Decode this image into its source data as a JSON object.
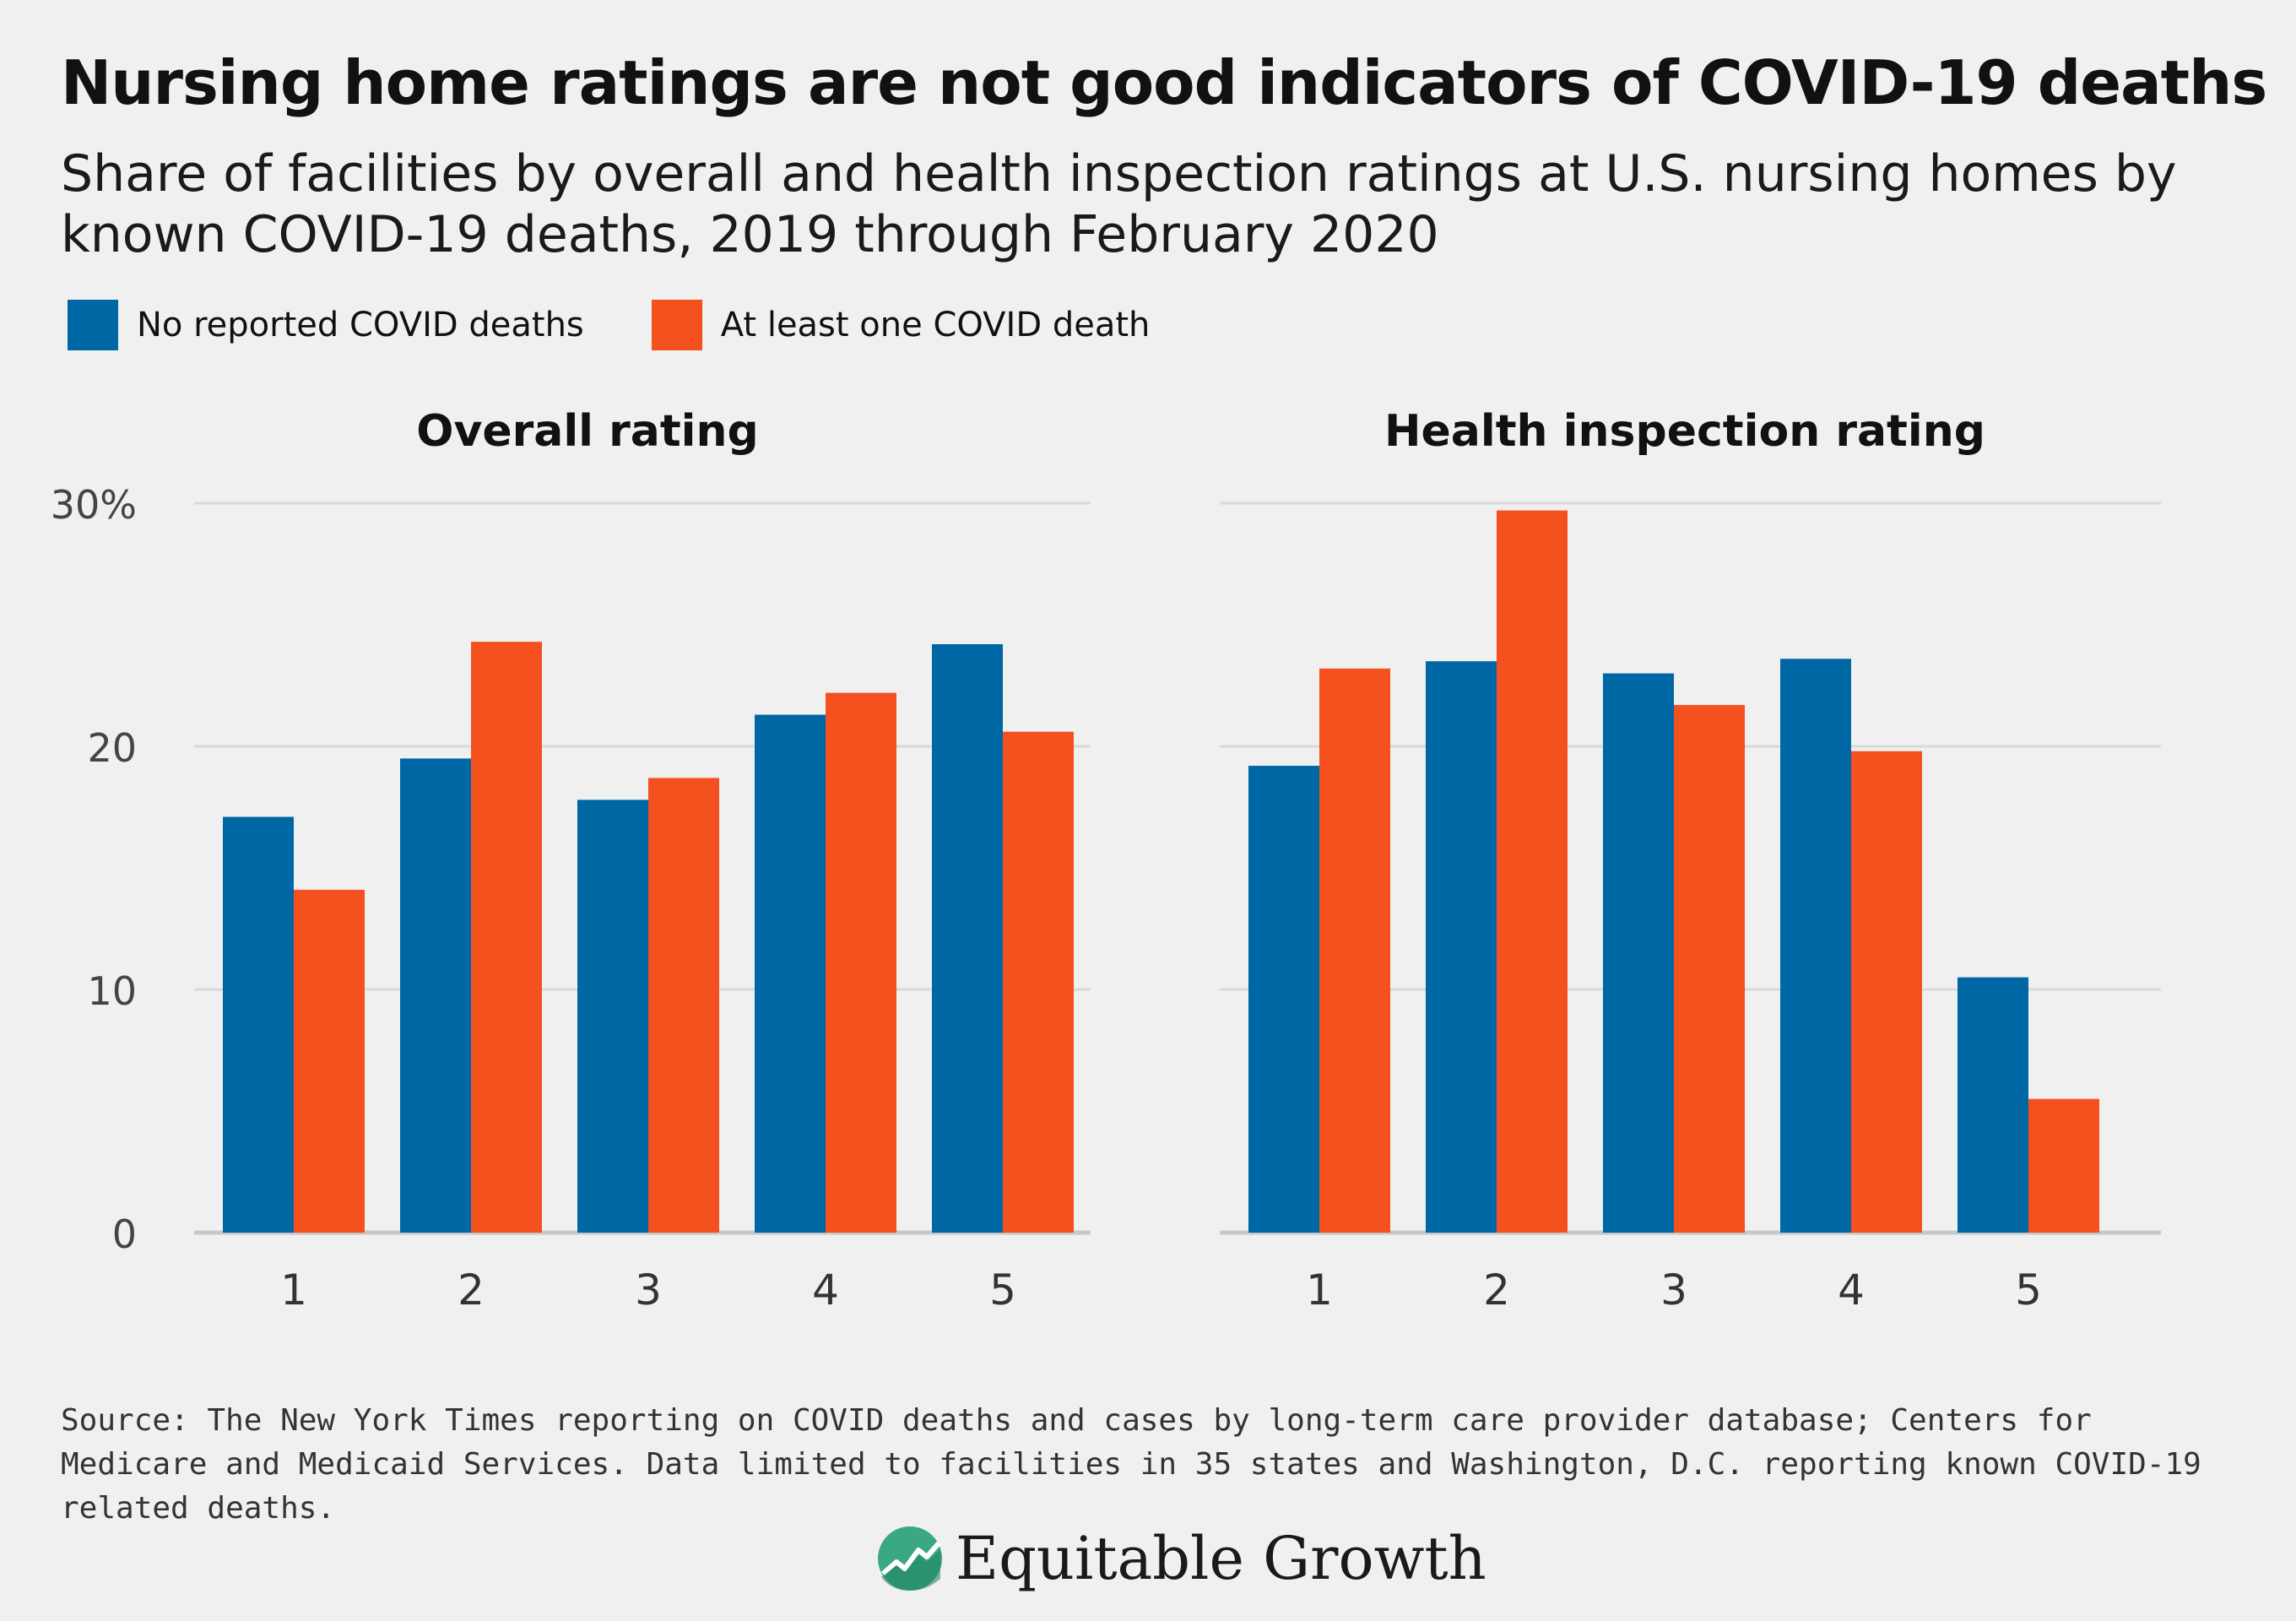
{
  "title": "Nursing home ratings are not good indicators of COVID-19 deaths",
  "subtitle": "Share of facilities by overall and health inspection ratings at U.S. nursing homes by known COVID-19 deaths, 2019 through February 2020",
  "legend": [
    {
      "label": "No reported COVID deaths",
      "color": "#0067a5"
    },
    {
      "label": "At least one COVID death",
      "color": "#f4511e"
    }
  ],
  "source": "Source: The New York Times reporting on COVID deaths and cases by long-term care provider database; Centers for Medicare and Medicaid Services. Data limited to facilities in 35 states and Washington, D.C. reporting known COVID-19 related deaths.",
  "logo": {
    "text": "Equitable Growth",
    "icon": "equitable-growth-logo-icon"
  },
  "chart_data": [
    {
      "type": "bar",
      "title": "Overall rating",
      "categories": [
        "1",
        "2",
        "3",
        "4",
        "5"
      ],
      "series": [
        {
          "name": "No reported COVID deaths",
          "values": [
            17.1,
            19.5,
            17.8,
            21.3,
            24.2
          ]
        },
        {
          "name": "At least one COVID death",
          "values": [
            14.1,
            24.3,
            18.7,
            22.2,
            20.6
          ]
        }
      ],
      "yticks": [
        "0",
        "10",
        "20",
        "30%"
      ],
      "ylim": [
        0,
        30
      ],
      "grid": true
    },
    {
      "type": "bar",
      "title": "Health inspection rating",
      "categories": [
        "1",
        "2",
        "3",
        "4",
        "5"
      ],
      "series": [
        {
          "name": "No reported COVID deaths",
          "values": [
            19.2,
            23.5,
            23.0,
            23.6,
            10.5
          ]
        },
        {
          "name": "At least one COVID death",
          "values": [
            23.2,
            29.7,
            21.7,
            19.8,
            5.5
          ]
        }
      ],
      "yticks": [
        "",
        "",
        "",
        ""
      ],
      "ylim": [
        0,
        30
      ],
      "grid": true
    }
  ]
}
